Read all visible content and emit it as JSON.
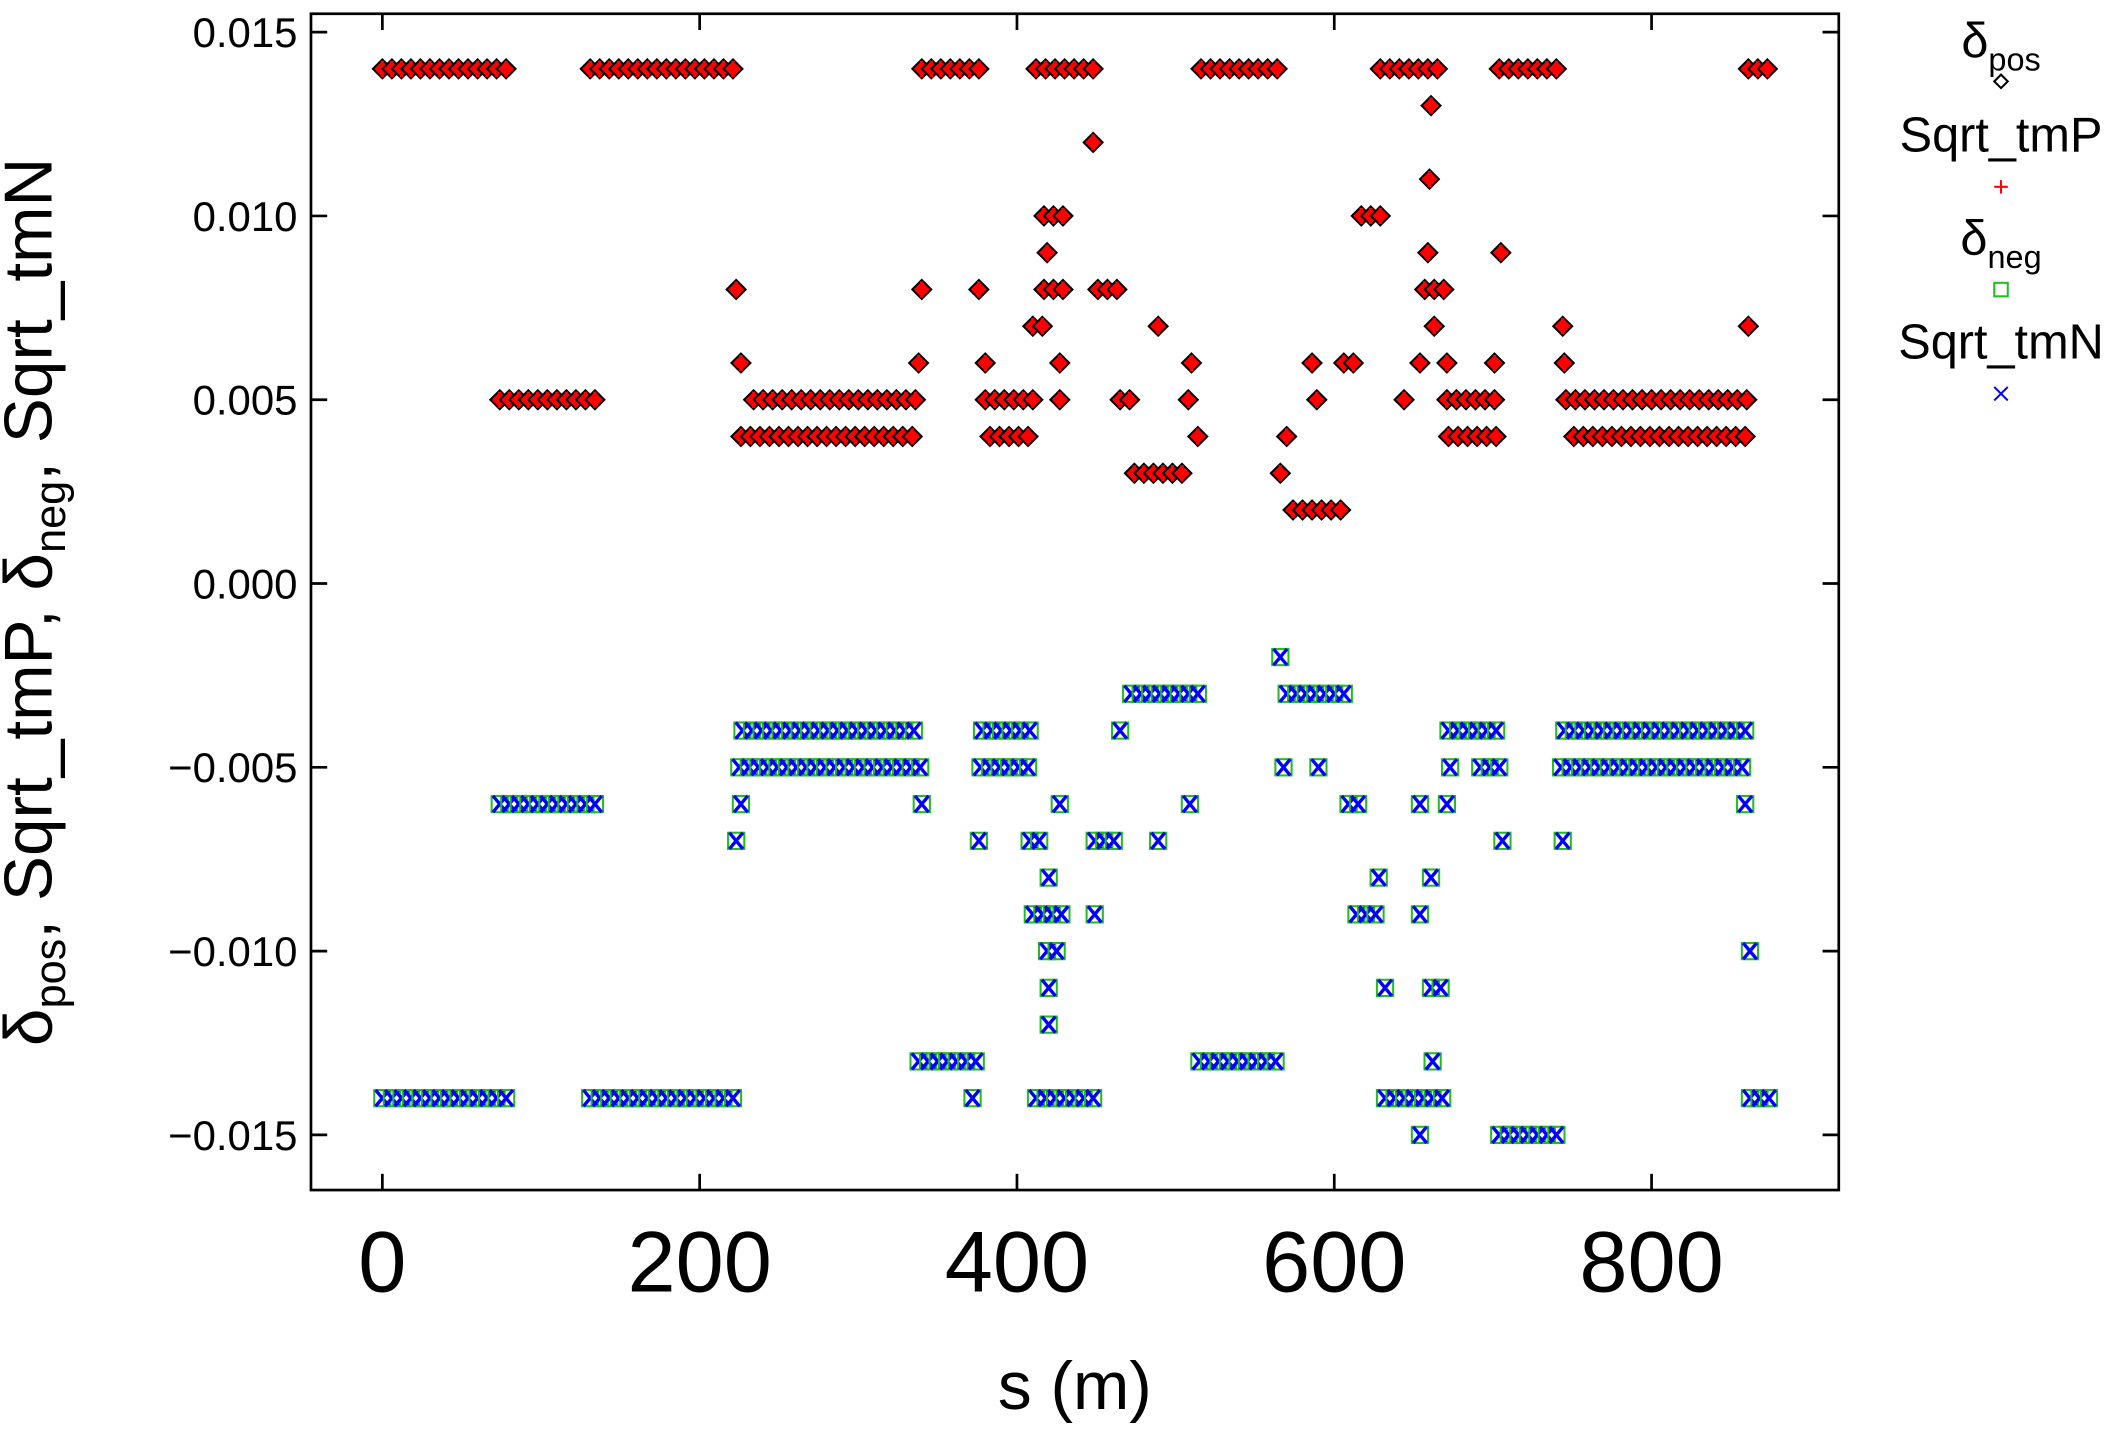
{
  "chart_data": {
    "type": "scatter",
    "title": "",
    "xlabel": "s (m)",
    "ylabel_parts": [
      "δ",
      "pos",
      ", Sqrt_tmP, ",
      "δ",
      "neg",
      ", Sqrt_tmN"
    ],
    "xlim": [
      -45,
      918
    ],
    "ylim": [
      -0.0165,
      0.0155
    ],
    "xticks": [
      0,
      200,
      400,
      600,
      800
    ],
    "xtick_labels": [
      "0",
      "200",
      "400",
      "600",
      "800"
    ],
    "yticks": [
      0.015,
      0.01,
      0.005,
      0.0,
      -0.005,
      -0.01,
      -0.015
    ],
    "ytick_labels": [
      "0.015",
      "0.010",
      "0.005",
      "0.000",
      "−0.005",
      "−0.010",
      "−0.015"
    ],
    "grid": false,
    "legend_placement": "outside-right",
    "legend": [
      {
        "label_main": "δ",
        "label_sub": "pos",
        "marker": "diamond",
        "color": "#000000"
      },
      {
        "label_main": "Sqrt_tmP",
        "label_sub": "",
        "marker": "plus",
        "color": "#ff0000"
      },
      {
        "label_main": "δ",
        "label_sub": "neg",
        "marker": "square",
        "color": "#22bb22"
      },
      {
        "label_main": "Sqrt_tmN",
        "label_sub": "",
        "marker": "x",
        "color": "#0000ff"
      }
    ],
    "point_spacing_m": 6,
    "positive_runs_note": "[s_start, s_end, value]; δ_pos and Sqrt_tmP coincide",
    "positive_runs": [
      [
        0,
        78,
        0.014
      ],
      [
        131,
        223,
        0.014
      ],
      [
        340,
        378,
        0.014
      ],
      [
        412,
        448,
        0.014
      ],
      [
        516,
        564,
        0.014
      ],
      [
        629,
        668,
        0.014
      ],
      [
        704,
        742,
        0.014
      ],
      [
        861,
        876,
        0.014
      ],
      [
        661,
        661,
        0.013
      ],
      [
        448,
        448,
        0.012
      ],
      [
        660,
        660,
        0.011
      ],
      [
        417,
        429,
        0.01
      ],
      [
        617,
        634,
        0.01
      ],
      [
        419,
        419,
        0.009
      ],
      [
        659,
        659,
        0.009
      ],
      [
        705,
        705,
        0.009
      ],
      [
        223,
        223,
        0.008
      ],
      [
        340,
        340,
        0.008
      ],
      [
        376,
        376,
        0.008
      ],
      [
        417,
        429,
        0.008
      ],
      [
        451,
        466,
        0.008
      ],
      [
        657,
        670,
        0.008
      ],
      [
        410,
        421,
        0.007
      ],
      [
        489,
        489,
        0.007
      ],
      [
        663,
        663,
        0.007
      ],
      [
        744,
        744,
        0.007
      ],
      [
        861,
        861,
        0.007
      ],
      [
        226,
        226,
        0.006
      ],
      [
        338,
        338,
        0.006
      ],
      [
        380,
        380,
        0.006
      ],
      [
        427,
        427,
        0.006
      ],
      [
        510,
        510,
        0.006
      ],
      [
        586,
        586,
        0.006
      ],
      [
        606,
        617,
        0.006
      ],
      [
        654,
        654,
        0.006
      ],
      [
        671,
        671,
        0.006
      ],
      [
        701,
        701,
        0.006
      ],
      [
        745,
        745,
        0.006
      ],
      [
        74,
        135,
        0.005
      ],
      [
        234,
        338,
        0.005
      ],
      [
        380,
        413,
        0.005
      ],
      [
        427,
        427,
        0.005
      ],
      [
        465,
        472,
        0.005
      ],
      [
        508,
        508,
        0.005
      ],
      [
        589,
        589,
        0.005
      ],
      [
        644,
        644,
        0.005
      ],
      [
        671,
        702,
        0.005
      ],
      [
        746,
        861,
        0.005
      ],
      [
        226,
        335,
        0.004
      ],
      [
        383,
        411,
        0.004
      ],
      [
        514,
        514,
        0.004
      ],
      [
        570,
        570,
        0.004
      ],
      [
        672,
        702,
        0.004
      ],
      [
        751,
        860,
        0.004
      ],
      [
        474,
        508,
        0.003
      ],
      [
        566,
        566,
        0.003
      ],
      [
        574,
        608,
        0.002
      ]
    ],
    "negative_runs_note": "[s_start, s_end, value]; δ_neg and Sqrt_tmN coincide",
    "negative_runs": [
      [
        566,
        566,
        -0.002
      ],
      [
        472,
        519,
        -0.003
      ],
      [
        570,
        608,
        -0.003
      ],
      [
        227,
        340,
        -0.004
      ],
      [
        378,
        410,
        -0.004
      ],
      [
        465,
        465,
        -0.004
      ],
      [
        672,
        702,
        -0.004
      ],
      [
        745,
        859,
        -0.004
      ],
      [
        225,
        340,
        -0.005
      ],
      [
        377,
        411,
        -0.005
      ],
      [
        568,
        568,
        -0.005
      ],
      [
        590,
        590,
        -0.005
      ],
      [
        673,
        673,
        -0.005
      ],
      [
        692,
        704,
        -0.005
      ],
      [
        743,
        861,
        -0.005
      ],
      [
        74,
        137,
        -0.006
      ],
      [
        226,
        226,
        -0.006
      ],
      [
        340,
        340,
        -0.006
      ],
      [
        427,
        427,
        -0.006
      ],
      [
        509,
        509,
        -0.006
      ],
      [
        609,
        620,
        -0.006
      ],
      [
        654,
        654,
        -0.006
      ],
      [
        671,
        671,
        -0.006
      ],
      [
        859,
        859,
        -0.006
      ],
      [
        223,
        223,
        -0.007
      ],
      [
        376,
        376,
        -0.007
      ],
      [
        408,
        419,
        -0.007
      ],
      [
        449,
        466,
        -0.007
      ],
      [
        489,
        489,
        -0.007
      ],
      [
        706,
        706,
        -0.007
      ],
      [
        744,
        744,
        -0.007
      ],
      [
        420,
        420,
        -0.008
      ],
      [
        628,
        628,
        -0.008
      ],
      [
        661,
        661,
        -0.008
      ],
      [
        410,
        429,
        -0.009
      ],
      [
        449,
        449,
        -0.009
      ],
      [
        614,
        629,
        -0.009
      ],
      [
        654,
        654,
        -0.009
      ],
      [
        419,
        430,
        -0.01
      ],
      [
        862,
        862,
        -0.01
      ],
      [
        420,
        420,
        -0.011
      ],
      [
        632,
        632,
        -0.011
      ],
      [
        661,
        671,
        -0.011
      ],
      [
        420,
        420,
        -0.012
      ],
      [
        338,
        378,
        -0.013
      ],
      [
        515,
        566,
        -0.013
      ],
      [
        662,
        662,
        -0.013
      ],
      [
        0,
        79,
        -0.014
      ],
      [
        131,
        225,
        -0.014
      ],
      [
        372,
        372,
        -0.014
      ],
      [
        412,
        448,
        -0.014
      ],
      [
        632,
        670,
        -0.014
      ],
      [
        862,
        876,
        -0.014
      ],
      [
        654,
        654,
        -0.015
      ],
      [
        704,
        745,
        -0.015
      ]
    ]
  }
}
